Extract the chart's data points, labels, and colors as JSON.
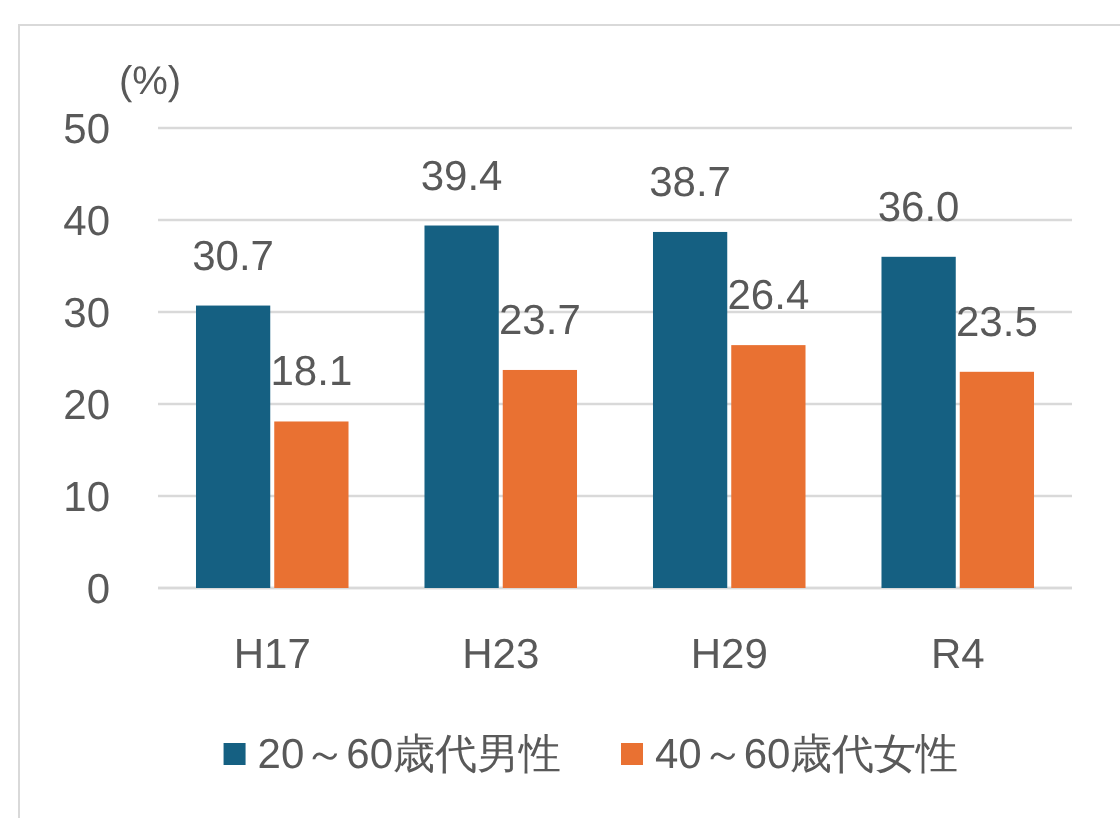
{
  "chart_data": {
    "type": "bar",
    "ylabel": "(%)",
    "categories": [
      "H17",
      "H23",
      "H29",
      "R4"
    ],
    "series": [
      {
        "name": "20～60歳代男性",
        "color": "#156082",
        "values": [
          30.7,
          39.4,
          38.7,
          36.0
        ],
        "value_labels": [
          "30.7",
          "39.4",
          "38.7",
          "36.0"
        ]
      },
      {
        "name": "40～60歳代女性",
        "color": "#e97132",
        "values": [
          18.1,
          23.7,
          26.4,
          23.5
        ],
        "value_labels": [
          "18.1",
          "23.7",
          "26.4",
          "23.5"
        ]
      }
    ],
    "ylim": [
      0,
      50
    ],
    "yticks": [
      0,
      10,
      20,
      30,
      40,
      50
    ],
    "grid": "y",
    "legend": "bottom"
  }
}
